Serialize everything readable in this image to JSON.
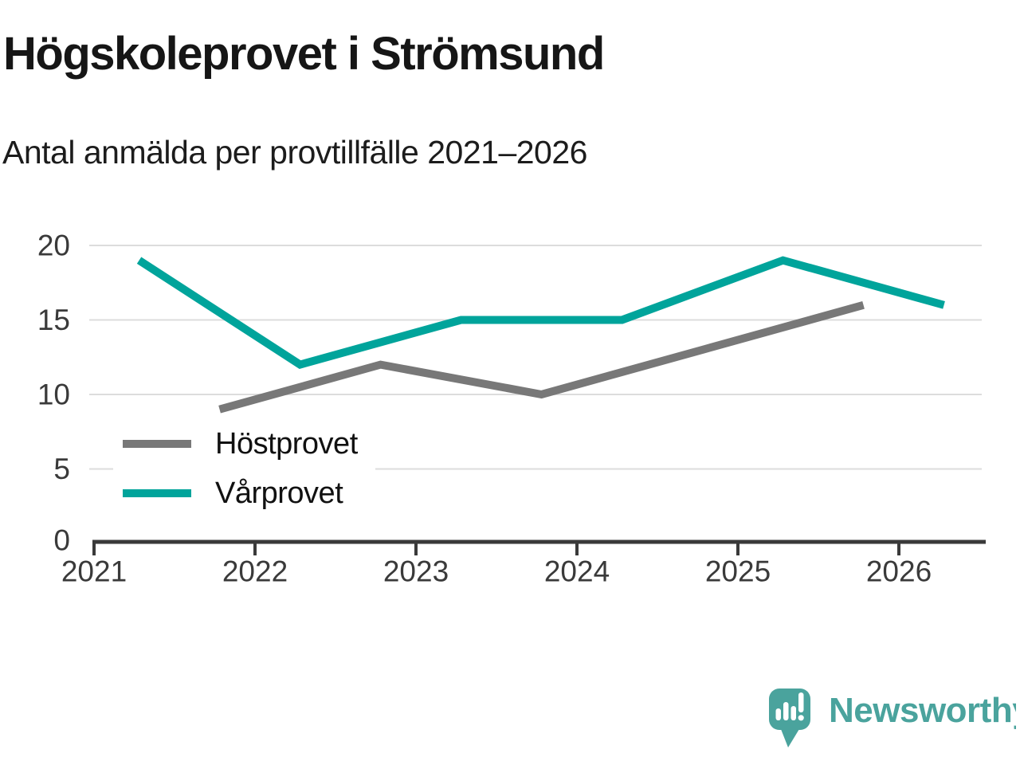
{
  "header": {
    "title": "Högskoleprovet i Strömsund",
    "subtitle": "Antal anmälda per provtillfälle 2021–2026"
  },
  "chart_data": {
    "type": "line",
    "title": "Högskoleprovet i Strömsund",
    "subtitle": "Antal anmälda per provtillfälle 2021–2026",
    "xlabel": "",
    "ylabel": "",
    "x_ticks": [
      2021,
      2022,
      2023,
      2024,
      2025,
      2026
    ],
    "y_ticks": [
      0,
      5,
      10,
      15,
      20
    ],
    "xlim": [
      2020.97,
      2026.55
    ],
    "ylim": [
      0,
      20
    ],
    "grid": "horizontal",
    "legend_position": "inside-bottom-left",
    "series": [
      {
        "name": "Höstprovet",
        "color": "#787878",
        "season": "autumn",
        "x": [
          2021.78,
          2022.78,
          2023.78,
          2024.78,
          2025.78
        ],
        "values": [
          9,
          12,
          10,
          13,
          16
        ]
      },
      {
        "name": "Vårprovet",
        "color": "#00a49b",
        "season": "spring",
        "x": [
          2021.28,
          2022.28,
          2023.28,
          2024.28,
          2025.28,
          2026.28
        ],
        "values": [
          19,
          12,
          15,
          15,
          19,
          16
        ]
      }
    ]
  },
  "colors": {
    "background": "#ffffff",
    "gridline": "#dcdcdc",
    "axis": "#3a3a3a",
    "tick_label": "#3a3a3a",
    "series_autumn_gray": "#787878",
    "series_spring_teal": "#00a49b",
    "logo_teal": "#4aa39d"
  },
  "logo": {
    "text": "Newsworthy",
    "icon": "speech-bubble-bar-chart-icon"
  }
}
